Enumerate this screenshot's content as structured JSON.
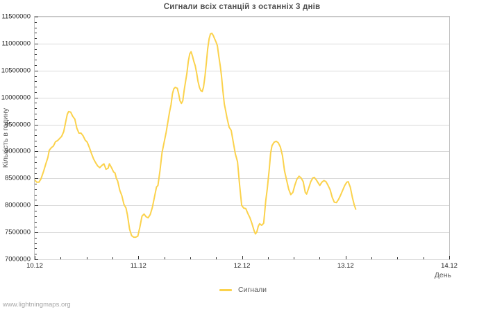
{
  "page": {
    "watermark": "www.lightningmaps.org"
  },
  "chart_data": {
    "type": "line",
    "title": "Сигнали всіх станцій з останніх 3 днів",
    "xlabel": "День",
    "ylabel": "Кількість в годину",
    "grid": "horizontal-only",
    "legend_position": "bottom-center",
    "line_color": "#fbd24c",
    "grid_color": "#d9d9d9",
    "frame_color": "#c2c2c2",
    "x_tick_labels": [
      "10.12",
      "11.12",
      "12.12",
      "13.12",
      "14.12"
    ],
    "x_tick_days": [
      0,
      1,
      2,
      3,
      4
    ],
    "x_minor_step_days": 0.25,
    "y_tick_values": [
      7000000,
      7500000,
      8000000,
      8500000,
      9000000,
      9500000,
      10000000,
      10500000,
      11000000,
      11500000
    ],
    "y_tick_labels": [
      "7000000",
      "7500000",
      "8000000",
      "8500000",
      "9000000",
      "9500000",
      "10000000",
      "10500000",
      "11000000",
      "11500000"
    ],
    "y_minor_step": 100000,
    "ylim": [
      7000000,
      11500000
    ],
    "xlim_days": [
      0,
      4
    ],
    "legend": {
      "entries": [
        {
          "label": "Сигнали",
          "color": "#fbd24c"
        }
      ]
    },
    "series": [
      {
        "name": "Сигнали",
        "color": "#fbd24c",
        "points_day_value": [
          [
            0.0,
            8470000
          ],
          [
            0.02,
            8430000
          ],
          [
            0.04,
            8430000
          ],
          [
            0.06,
            8490000
          ],
          [
            0.087,
            8640000
          ],
          [
            0.107,
            8770000
          ],
          [
            0.127,
            8890000
          ],
          [
            0.14,
            9020000
          ],
          [
            0.16,
            9070000
          ],
          [
            0.18,
            9100000
          ],
          [
            0.2,
            9180000
          ],
          [
            0.22,
            9200000
          ],
          [
            0.24,
            9240000
          ],
          [
            0.26,
            9280000
          ],
          [
            0.28,
            9370000
          ],
          [
            0.3,
            9560000
          ],
          [
            0.314,
            9690000
          ],
          [
            0.327,
            9740000
          ],
          [
            0.347,
            9730000
          ],
          [
            0.367,
            9650000
          ],
          [
            0.387,
            9600000
          ],
          [
            0.407,
            9430000
          ],
          [
            0.427,
            9340000
          ],
          [
            0.447,
            9340000
          ],
          [
            0.467,
            9290000
          ],
          [
            0.487,
            9210000
          ],
          [
            0.507,
            9170000
          ],
          [
            0.528,
            9070000
          ],
          [
            0.548,
            8960000
          ],
          [
            0.568,
            8860000
          ],
          [
            0.588,
            8790000
          ],
          [
            0.608,
            8730000
          ],
          [
            0.628,
            8700000
          ],
          [
            0.648,
            8740000
          ],
          [
            0.668,
            8770000
          ],
          [
            0.688,
            8670000
          ],
          [
            0.708,
            8690000
          ],
          [
            0.721,
            8770000
          ],
          [
            0.741,
            8700000
          ],
          [
            0.761,
            8620000
          ],
          [
            0.775,
            8600000
          ],
          [
            0.788,
            8500000
          ],
          [
            0.801,
            8450000
          ],
          [
            0.821,
            8280000
          ],
          [
            0.841,
            8180000
          ],
          [
            0.861,
            8020000
          ],
          [
            0.881,
            7950000
          ],
          [
            0.895,
            7820000
          ],
          [
            0.915,
            7560000
          ],
          [
            0.935,
            7440000
          ],
          [
            0.955,
            7410000
          ],
          [
            0.975,
            7410000
          ],
          [
            0.995,
            7430000
          ],
          [
            1.015,
            7600000
          ],
          [
            1.035,
            7800000
          ],
          [
            1.055,
            7840000
          ],
          [
            1.075,
            7790000
          ],
          [
            1.095,
            7770000
          ],
          [
            1.115,
            7830000
          ],
          [
            1.135,
            7960000
          ],
          [
            1.155,
            8150000
          ],
          [
            1.175,
            8340000
          ],
          [
            1.189,
            8370000
          ],
          [
            1.209,
            8640000
          ],
          [
            1.229,
            8980000
          ],
          [
            1.249,
            9170000
          ],
          [
            1.269,
            9360000
          ],
          [
            1.282,
            9510000
          ],
          [
            1.302,
            9740000
          ],
          [
            1.316,
            9870000
          ],
          [
            1.329,
            10070000
          ],
          [
            1.342,
            10160000
          ],
          [
            1.356,
            10190000
          ],
          [
            1.376,
            10170000
          ],
          [
            1.389,
            10070000
          ],
          [
            1.402,
            9940000
          ],
          [
            1.416,
            9890000
          ],
          [
            1.429,
            9940000
          ],
          [
            1.442,
            10130000
          ],
          [
            1.456,
            10300000
          ],
          [
            1.469,
            10450000
          ],
          [
            1.482,
            10670000
          ],
          [
            1.496,
            10810000
          ],
          [
            1.509,
            10850000
          ],
          [
            1.522,
            10770000
          ],
          [
            1.536,
            10670000
          ],
          [
            1.549,
            10590000
          ],
          [
            1.563,
            10450000
          ],
          [
            1.576,
            10300000
          ],
          [
            1.589,
            10190000
          ],
          [
            1.603,
            10130000
          ],
          [
            1.616,
            10110000
          ],
          [
            1.629,
            10190000
          ],
          [
            1.643,
            10390000
          ],
          [
            1.656,
            10640000
          ],
          [
            1.669,
            10900000
          ],
          [
            1.683,
            11090000
          ],
          [
            1.696,
            11180000
          ],
          [
            1.71,
            11190000
          ],
          [
            1.723,
            11150000
          ],
          [
            1.736,
            11090000
          ],
          [
            1.75,
            11030000
          ],
          [
            1.763,
            10960000
          ],
          [
            1.776,
            10770000
          ],
          [
            1.79,
            10590000
          ],
          [
            1.803,
            10390000
          ],
          [
            1.816,
            10130000
          ],
          [
            1.83,
            9880000
          ],
          [
            1.843,
            9750000
          ],
          [
            1.856,
            9620000
          ],
          [
            1.876,
            9450000
          ],
          [
            1.896,
            9390000
          ],
          [
            1.916,
            9170000
          ],
          [
            1.936,
            8960000
          ],
          [
            1.957,
            8810000
          ],
          [
            1.977,
            8380000
          ],
          [
            1.997,
            8000000
          ],
          [
            2.017,
            7950000
          ],
          [
            2.037,
            7940000
          ],
          [
            2.057,
            7850000
          ],
          [
            2.077,
            7770000
          ],
          [
            2.097,
            7660000
          ],
          [
            2.117,
            7530000
          ],
          [
            2.13,
            7470000
          ],
          [
            2.144,
            7510000
          ],
          [
            2.157,
            7610000
          ],
          [
            2.17,
            7660000
          ],
          [
            2.19,
            7630000
          ],
          [
            2.21,
            7670000
          ],
          [
            2.23,
            8090000
          ],
          [
            2.244,
            8300000
          ],
          [
            2.264,
            8680000
          ],
          [
            2.277,
            8970000
          ],
          [
            2.29,
            9110000
          ],
          [
            2.31,
            9170000
          ],
          [
            2.33,
            9190000
          ],
          [
            2.351,
            9160000
          ],
          [
            2.371,
            9080000
          ],
          [
            2.391,
            8920000
          ],
          [
            2.411,
            8640000
          ],
          [
            2.431,
            8470000
          ],
          [
            2.451,
            8300000
          ],
          [
            2.471,
            8200000
          ],
          [
            2.491,
            8240000
          ],
          [
            2.511,
            8380000
          ],
          [
            2.531,
            8490000
          ],
          [
            2.551,
            8540000
          ],
          [
            2.571,
            8510000
          ],
          [
            2.591,
            8440000
          ],
          [
            2.611,
            8240000
          ],
          [
            2.624,
            8210000
          ],
          [
            2.644,
            8320000
          ],
          [
            2.664,
            8440000
          ],
          [
            2.684,
            8510000
          ],
          [
            2.698,
            8520000
          ],
          [
            2.718,
            8470000
          ],
          [
            2.738,
            8410000
          ],
          [
            2.751,
            8370000
          ],
          [
            2.771,
            8430000
          ],
          [
            2.791,
            8460000
          ],
          [
            2.811,
            8440000
          ],
          [
            2.831,
            8370000
          ],
          [
            2.851,
            8290000
          ],
          [
            2.871,
            8150000
          ],
          [
            2.891,
            8060000
          ],
          [
            2.911,
            8050000
          ],
          [
            2.932,
            8110000
          ],
          [
            2.952,
            8190000
          ],
          [
            2.972,
            8280000
          ],
          [
            2.992,
            8370000
          ],
          [
            3.012,
            8430000
          ],
          [
            3.025,
            8440000
          ],
          [
            3.045,
            8340000
          ],
          [
            3.065,
            8150000
          ],
          [
            3.085,
            8000000
          ],
          [
            3.098,
            7930000
          ]
        ]
      }
    ]
  }
}
